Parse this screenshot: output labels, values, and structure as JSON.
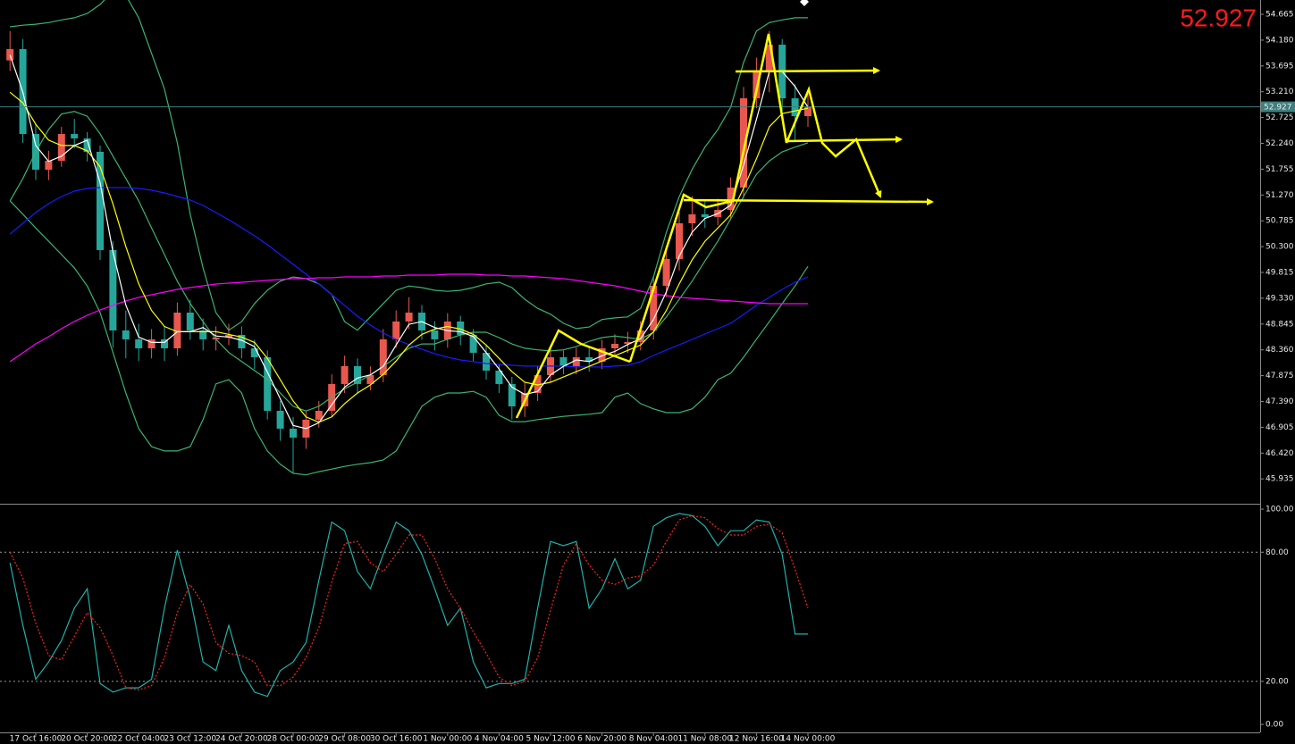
{
  "chart_data": [
    {
      "type": "candlestick",
      "categories": [
        null,
        null,
        "17 Oct 16:00",
        null,
        null,
        null,
        "20 Oct 20:00",
        null,
        null,
        null,
        "22 Oct 04:00",
        null,
        null,
        null,
        "23 Oct 12:00",
        null,
        null,
        null,
        "24 Oct 20:00",
        null,
        null,
        null,
        "28 Oct 00:00",
        null,
        null,
        null,
        "29 Oct 08:00",
        null,
        null,
        null,
        "30 Oct 16:00",
        null,
        null,
        null,
        "1 Nov 00:00",
        null,
        null,
        null,
        "4 Nov 04:00",
        null,
        null,
        null,
        "5 Nov 12:00",
        null,
        null,
        null,
        "6 Nov 20:00",
        null,
        null,
        null,
        "8 Nov 04:00",
        null,
        null,
        null,
        "11 Nov 08:00",
        null,
        null,
        null,
        "12 Nov 16:00",
        null,
        null,
        null,
        "14 Nov 00:00"
      ],
      "open": [
        53.8,
        54.011,
        52.416,
        51.745,
        51.913,
        52.416,
        52.333,
        52.081,
        50.235,
        48.725,
        48.557,
        48.389,
        48.557,
        48.389,
        49.06,
        48.725,
        48.557,
        48.59,
        48.641,
        48.389,
        48.221,
        47.214,
        46.879,
        46.711,
        47.047,
        47.214,
        47.718,
        48.054,
        47.718,
        47.886,
        48.557,
        48.893,
        49.06,
        48.725,
        48.557,
        48.893,
        48.641,
        48.305,
        47.97,
        47.718,
        47.298,
        47.55,
        47.886,
        48.221,
        48.054,
        48.221,
        48.138,
        48.389,
        48.473,
        48.507,
        48.725,
        49.564,
        50.067,
        50.738,
        50.906,
        50.856,
        50.99,
        51.41,
        53.087,
        53.591,
        54.094,
        53.087,
        52.752
      ],
      "high": [
        54.35,
        54.2,
        52.6,
        52.1,
        52.55,
        52.7,
        52.45,
        52.2,
        50.4,
        49.1,
        48.85,
        48.75,
        48.8,
        49.25,
        49.3,
        48.95,
        48.8,
        48.85,
        48.8,
        48.55,
        48.35,
        47.4,
        47.1,
        47.2,
        47.4,
        47.9,
        48.25,
        48.2,
        48.05,
        48.75,
        49.1,
        49.35,
        49.2,
        48.9,
        49.05,
        49.0,
        48.75,
        48.45,
        48.1,
        47.85,
        47.75,
        48.05,
        48.4,
        48.35,
        48.4,
        48.4,
        48.55,
        48.65,
        48.7,
        48.9,
        49.75,
        50.3,
        50.95,
        51.25,
        51.15,
        51.2,
        51.6,
        53.3,
        53.85,
        54.35,
        54.2,
        53.35,
        53.25
      ],
      "low": [
        53.6,
        52.25,
        51.55,
        51.55,
        51.8,
        52.15,
        51.9,
        50.05,
        48.4,
        48.2,
        48.15,
        48.2,
        48.15,
        48.25,
        48.55,
        48.35,
        48.35,
        48.45,
        48.2,
        48.0,
        47.05,
        46.65,
        46.05,
        46.5,
        46.9,
        47.1,
        47.55,
        47.55,
        47.6,
        47.75,
        48.4,
        48.75,
        48.55,
        48.35,
        48.4,
        48.45,
        48.15,
        47.8,
        47.55,
        47.05,
        47.1,
        47.4,
        47.75,
        47.9,
        47.9,
        47.95,
        48.0,
        48.25,
        48.3,
        48.35,
        48.55,
        49.35,
        49.85,
        50.5,
        50.65,
        50.7,
        50.8,
        51.2,
        52.9,
        53.2,
        52.85,
        52.3,
        52.55
      ],
      "close": [
        54.011,
        52.416,
        51.745,
        51.913,
        52.416,
        52.333,
        52.081,
        50.235,
        48.725,
        48.557,
        48.389,
        48.557,
        48.389,
        49.06,
        48.725,
        48.557,
        48.59,
        48.641,
        48.389,
        48.221,
        47.214,
        46.879,
        46.711,
        47.047,
        47.214,
        47.718,
        48.054,
        47.718,
        47.886,
        48.557,
        48.893,
        49.06,
        48.725,
        48.557,
        48.893,
        48.641,
        48.305,
        47.97,
        47.718,
        47.298,
        47.55,
        47.886,
        48.221,
        48.054,
        48.221,
        48.138,
        48.389,
        48.473,
        48.507,
        48.725,
        49.564,
        50.067,
        50.738,
        50.906,
        50.856,
        50.99,
        51.41,
        53.087,
        53.591,
        54.094,
        53.087,
        52.752,
        52.927
      ],
      "up_color": "#e8584e",
      "down_color": "#26a69a",
      "series": [
        {
          "color": "#3cb371",
          "values": [
            54.43,
            54.46,
            54.48,
            54.51,
            54.56,
            54.6,
            54.68,
            54.85,
            55.1,
            55.02,
            54.6,
            53.93,
            53.26,
            52.25,
            50.91,
            49.9,
            49.06,
            48.73,
            48.89,
            49.23,
            49.48,
            49.65,
            49.73,
            49.7,
            49.6,
            49.4,
            48.89,
            48.73,
            48.98,
            49.23,
            49.48,
            49.56,
            49.53,
            49.48,
            49.46,
            49.48,
            49.53,
            49.6,
            49.63,
            49.53,
            49.31,
            49.14,
            49.03,
            48.86,
            48.76,
            48.79,
            48.93,
            48.96,
            48.98,
            49.14,
            49.73,
            50.57,
            51.24,
            51.75,
            52.17,
            52.5,
            52.92,
            53.76,
            54.35,
            54.51,
            54.56,
            54.6,
            54.6
          ]
        },
        {
          "color": "#3cb371",
          "values": [
            51.16,
            51.58,
            52.08,
            52.5,
            52.79,
            52.84,
            52.75,
            52.42,
            52.0,
            51.58,
            51.16,
            50.65,
            50.15,
            49.65,
            49.23,
            48.89,
            48.56,
            48.31,
            48.14,
            47.97,
            47.8,
            47.55,
            47.3,
            47.21,
            47.3,
            47.47,
            47.63,
            47.75,
            47.89,
            48.05,
            48.22,
            48.39,
            48.47,
            48.47,
            48.56,
            48.64,
            48.69,
            48.69,
            48.59,
            48.47,
            48.39,
            48.36,
            48.34,
            48.36,
            48.42,
            48.52,
            48.59,
            48.62,
            48.59,
            48.56,
            48.69,
            48.98,
            49.31,
            49.65,
            50.03,
            50.4,
            50.82,
            51.24,
            51.66,
            51.91,
            52.08,
            52.17,
            52.25
          ]
        },
        {
          "color": "#3cb371",
          "values": [
            51.16,
            50.91,
            50.65,
            50.4,
            50.15,
            49.9,
            49.56,
            49.06,
            48.31,
            47.55,
            46.88,
            46.54,
            46.46,
            46.46,
            46.54,
            47.05,
            47.72,
            47.8,
            47.55,
            46.88,
            46.46,
            46.21,
            46.04,
            46.01,
            46.07,
            46.12,
            46.17,
            46.21,
            46.24,
            46.29,
            46.46,
            46.88,
            47.3,
            47.47,
            47.55,
            47.55,
            47.58,
            47.47,
            47.13,
            47.01,
            47.01,
            47.05,
            47.08,
            47.11,
            47.13,
            47.15,
            47.18,
            47.47,
            47.55,
            47.35,
            47.25,
            47.18,
            47.18,
            47.25,
            47.47,
            47.8,
            47.92,
            48.22,
            48.56,
            48.89,
            49.23,
            49.56,
            49.93
          ]
        },
        {
          "color": "#1a1aff",
          "values": [
            50.537,
            50.738,
            50.94,
            51.108,
            51.242,
            51.343,
            51.393,
            51.41,
            51.41,
            51.41,
            51.393,
            51.359,
            51.309,
            51.242,
            51.175,
            51.074,
            50.94,
            50.806,
            50.655,
            50.504,
            50.336,
            50.151,
            49.967,
            49.782,
            49.597,
            49.396,
            49.195,
            48.993,
            48.826,
            48.675,
            48.557,
            48.456,
            48.372,
            48.289,
            48.221,
            48.171,
            48.138,
            48.104,
            48.087,
            48.07,
            48.054,
            48.054,
            48.054,
            48.054,
            48.037,
            48.037,
            48.037,
            48.054,
            48.07,
            48.138,
            48.255,
            48.356,
            48.456,
            48.557,
            48.658,
            48.758,
            48.859,
            49.027,
            49.195,
            49.346,
            49.497,
            49.631,
            49.732
          ]
        },
        {
          "color": "#ff00ff",
          "values": [
            48.138,
            48.305,
            48.473,
            48.607,
            48.758,
            48.893,
            49.01,
            49.111,
            49.195,
            49.279,
            49.346,
            49.396,
            49.446,
            49.497,
            49.53,
            49.564,
            49.597,
            49.614,
            49.631,
            49.648,
            49.665,
            49.681,
            49.698,
            49.698,
            49.715,
            49.715,
            49.732,
            49.732,
            49.732,
            49.748,
            49.748,
            49.765,
            49.765,
            49.765,
            49.782,
            49.782,
            49.782,
            49.765,
            49.765,
            49.748,
            49.748,
            49.732,
            49.715,
            49.698,
            49.665,
            49.631,
            49.597,
            49.564,
            49.514,
            49.463,
            49.413,
            49.379,
            49.346,
            49.329,
            49.312,
            49.295,
            49.279,
            49.262,
            49.245,
            49.228,
            49.228,
            49.228,
            49.228
          ]
        },
        {
          "color": "#ffff00",
          "values": [
            53.2,
            53.0,
            52.6,
            52.3,
            52.2,
            52.2,
            52.1,
            51.8,
            51.1,
            50.3,
            49.6,
            49.1,
            48.8,
            48.7,
            48.7,
            48.7,
            48.7,
            48.65,
            48.6,
            48.5,
            48.2,
            47.8,
            47.4,
            47.1,
            47.0,
            47.1,
            47.35,
            47.55,
            47.7,
            47.9,
            48.15,
            48.45,
            48.65,
            48.75,
            48.8,
            48.75,
            48.65,
            48.45,
            48.2,
            47.95,
            47.75,
            47.7,
            47.75,
            47.85,
            47.95,
            48.05,
            48.15,
            48.25,
            48.35,
            48.45,
            48.7,
            49.1,
            49.6,
            50.05,
            50.4,
            50.65,
            50.9,
            51.4,
            51.95,
            52.55,
            52.8,
            52.85,
            52.9
          ]
        },
        {
          "color": "#ffffff",
          "values": [
            53.9,
            53.2,
            52.2,
            51.9,
            52.0,
            52.2,
            52.3,
            51.5,
            50.2,
            49.2,
            48.6,
            48.5,
            48.5,
            48.7,
            48.7,
            48.78,
            48.62,
            48.6,
            48.54,
            48.42,
            47.94,
            47.44,
            46.94,
            46.88,
            46.99,
            47.33,
            47.66,
            47.83,
            47.89,
            48.05,
            48.45,
            48.84,
            48.89,
            48.78,
            48.72,
            48.7,
            48.61,
            48.31,
            48.0,
            47.66,
            47.52,
            47.58,
            47.89,
            48.05,
            48.17,
            48.14,
            48.25,
            48.33,
            48.46,
            48.57,
            48.93,
            49.45,
            50.12,
            50.57,
            50.83,
            50.92,
            51.08,
            51.83,
            52.69,
            53.59,
            53.59,
            53.31,
            52.92
          ]
        }
      ],
      "ylim": [
        45.485,
        54.934
      ],
      "yticks": [
        54.665,
        {
          "value": 54.18,
          "label": "54.180"
        },
        53.695,
        {
          "value": 53.21,
          "label": "53.210"
        },
        52.725,
        {
          "value": 52.24,
          "label": "52.240"
        },
        51.755,
        {
          "value": 51.27,
          "label": "51.270"
        },
        50.785,
        {
          "value": 50.3,
          "label": "50.300"
        },
        49.815,
        {
          "value": 49.33,
          "label": "49.330"
        },
        48.845,
        {
          "value": 48.36,
          "label": "48.360"
        },
        47.875,
        {
          "value": 47.39,
          "label": "47.390"
        },
        46.905,
        {
          "value": 46.42,
          "label": "46.420"
        },
        45.935
      ],
      "last_price": 52.927,
      "last_price_color": "#ff1a1a"
    },
    {
      "type": "line",
      "series": [
        {
          "color": "#20b2aa",
          "values": [
            75,
            46,
            21,
            29,
            39,
            54,
            63,
            19,
            15,
            17,
            17,
            21,
            54,
            81,
            59,
            29,
            25,
            46,
            25,
            15,
            13,
            25,
            29,
            38,
            67,
            94,
            90,
            71,
            63,
            79,
            94,
            90,
            79,
            63,
            46,
            54,
            29,
            17,
            19,
            19,
            21,
            54,
            85,
            83,
            85,
            54,
            63,
            77,
            63,
            67,
            92,
            96,
            98,
            97,
            92,
            83,
            90,
            90,
            95,
            94,
            79,
            42,
            42
          ]
        },
        {
          "color": "#ff2020",
          "dash": true,
          "values": [
            80,
            68,
            47,
            32,
            30,
            41,
            52,
            45,
            32,
            17,
            16,
            18,
            31,
            52,
            65,
            56,
            38,
            33,
            32,
            29,
            18,
            18,
            22,
            31,
            45,
            66,
            84,
            85,
            75,
            71,
            79,
            88,
            88,
            77,
            63,
            54,
            43,
            33,
            22,
            18,
            20,
            31,
            53,
            74,
            84,
            74,
            67,
            65,
            68,
            69,
            74,
            85,
            95,
            97,
            96,
            91,
            88,
            88,
            92,
            93,
            89,
            72,
            54
          ]
        }
      ],
      "ylim": [
        -3.7,
        102.1
      ],
      "yticks": [
        {
          "value": 100,
          "label": "100.00"
        },
        {
          "value": 80,
          "label": "80.00"
        },
        {
          "value": 20,
          "label": "20.00"
        },
        {
          "value": 0,
          "label": "0.00"
        }
      ],
      "levels": [
        80,
        20
      ]
    }
  ]
}
